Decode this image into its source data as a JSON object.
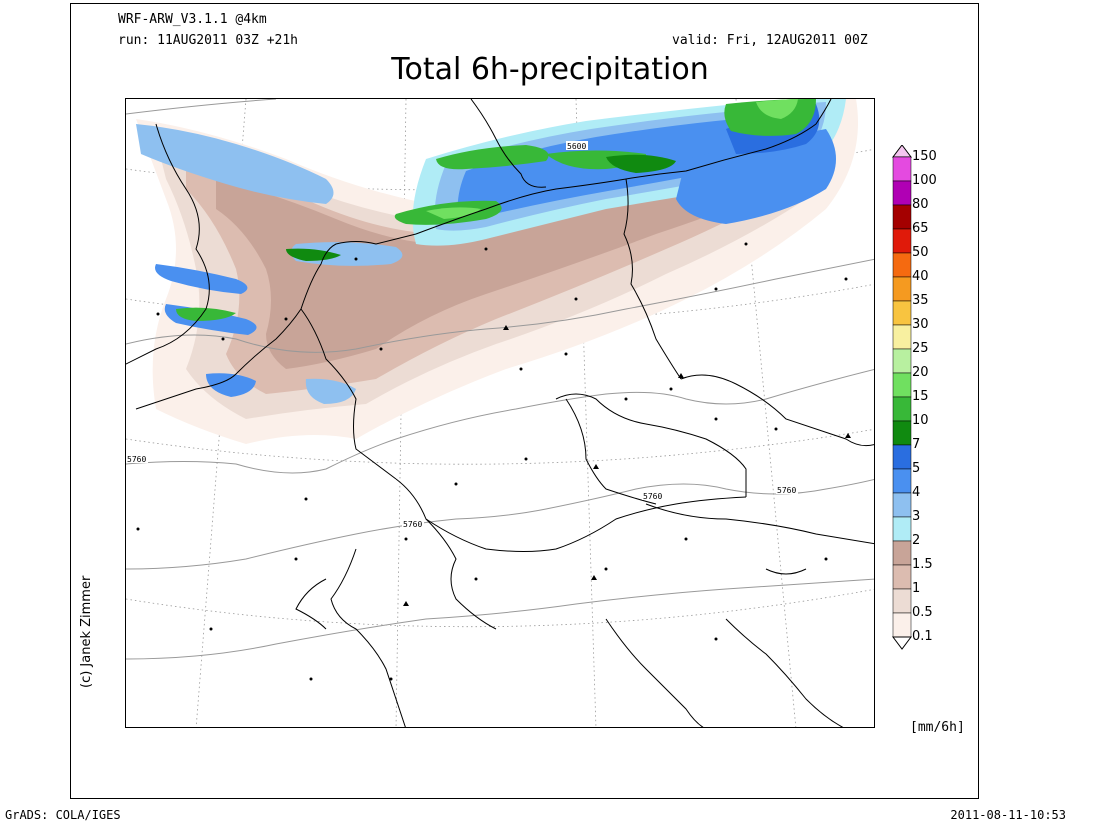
{
  "header": {
    "model": "WRF-ARW_V3.1.1 @4km",
    "run": "run: 11AUG2011 03Z +21h",
    "valid": "valid: Fri, 12AUG2011 00Z",
    "title": "Total 6h-precipitation"
  },
  "credit": "(c) Janek Zimmer",
  "units": "[mm/6h]",
  "footer": {
    "left": "GrADS: COLA/IGES",
    "right": "2011-08-11-10:53"
  },
  "legend": {
    "levels": [
      {
        "label": "150",
        "color": "#f5c6f0"
      },
      {
        "label": "100",
        "color": "#e44ae0"
      },
      {
        "label": "80",
        "color": "#b000b4"
      },
      {
        "label": "65",
        "color": "#a40000"
      },
      {
        "label": "50",
        "color": "#e01a0a"
      },
      {
        "label": "40",
        "color": "#f56a10"
      },
      {
        "label": "35",
        "color": "#f59a20"
      },
      {
        "label": "30",
        "color": "#f8c440"
      },
      {
        "label": "25",
        "color": "#f8f0a0"
      },
      {
        "label": "20",
        "color": "#b8f0a0"
      },
      {
        "label": "15",
        "color": "#70e060"
      },
      {
        "label": "10",
        "color": "#38b838"
      },
      {
        "label": "7",
        "color": "#108a10"
      },
      {
        "label": "5",
        "color": "#2a6ee0"
      },
      {
        "label": "4",
        "color": "#4a90f0"
      },
      {
        "label": "3",
        "color": "#8ec0f0"
      },
      {
        "label": "2",
        "color": "#b0ecf6"
      },
      {
        "label": "1.5",
        "color": "#c8a498"
      },
      {
        "label": "1",
        "color": "#dcbcb0"
      },
      {
        "label": "0.5",
        "color": "#ecdcd4"
      },
      {
        "label": "0.1",
        "color": "#fbf0ea"
      }
    ],
    "bottom_color": "#ffffff"
  },
  "contour_labels": [
    "5600",
    "5760",
    "5760",
    "5760",
    "5760"
  ]
}
